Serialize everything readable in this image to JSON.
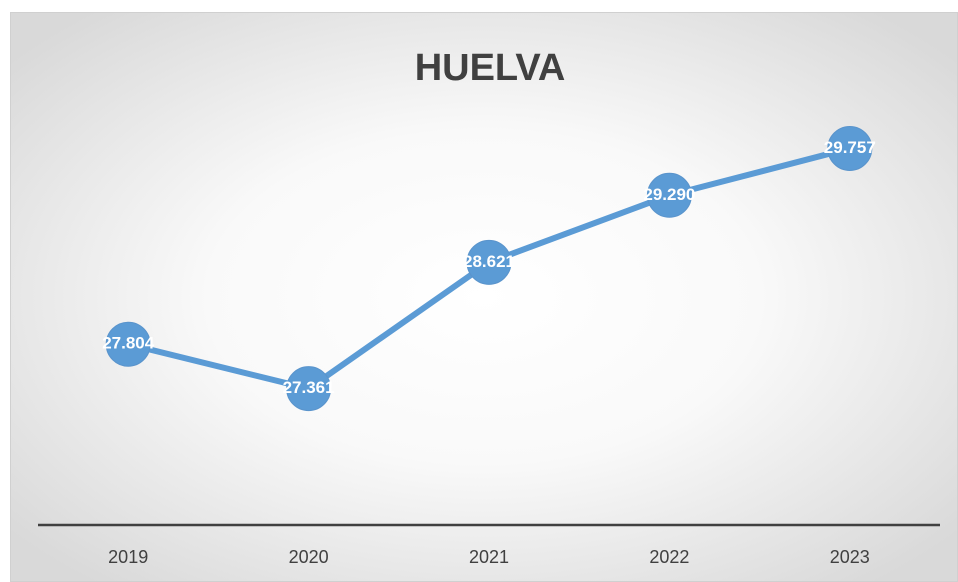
{
  "chart_data": {
    "type": "line",
    "title": "HUELVA",
    "categories": [
      "2019",
      "2020",
      "2021",
      "2022",
      "2023"
    ],
    "values": [
      27804,
      27361,
      28621,
      29290,
      29757
    ],
    "value_labels": [
      "27.804",
      "27.361",
      "28.621",
      "29.290",
      "29.757"
    ],
    "color": "#5b9bd5",
    "ylim": [
      26000,
      30500
    ]
  }
}
